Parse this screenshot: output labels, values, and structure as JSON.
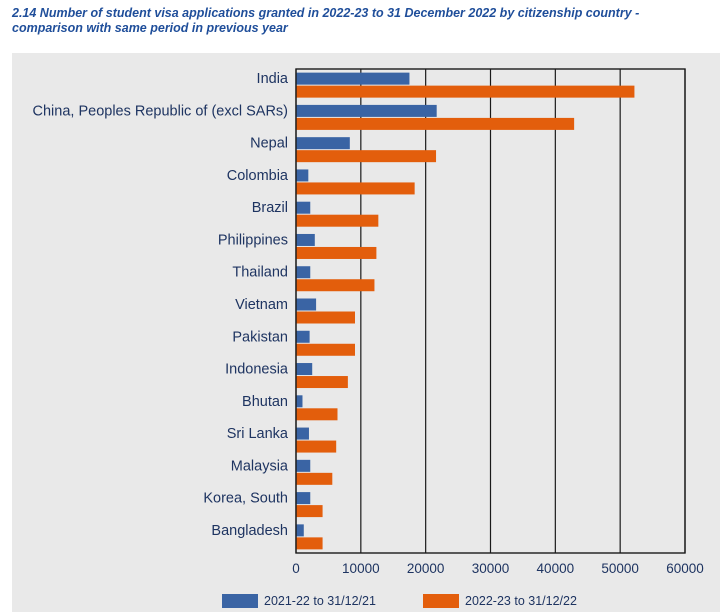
{
  "title": "2.14 Number of student visa applications granted in 2022-23 to 31 December 2022 by citizenship country - comparison with same period in previous year",
  "chart_data": {
    "type": "bar",
    "orientation": "horizontal",
    "categories": [
      "India",
      "China, Peoples Republic of (excl SARs)",
      "Nepal",
      "Colombia",
      "Brazil",
      "Philippines",
      "Thailand",
      "Vietnam",
      "Pakistan",
      "Indonesia",
      "Bhutan",
      "Sri Lanka",
      "Malaysia",
      "Korea, South",
      "Bangladesh"
    ],
    "series": [
      {
        "name": "2021-22 to 31/12/21",
        "color": "#3a64a4",
        "values": [
          17500,
          21700,
          8300,
          1900,
          2200,
          2900,
          2200,
          3100,
          2100,
          2500,
          1000,
          2000,
          2200,
          2200,
          1200
        ]
      },
      {
        "name": "2022-23 to 31/12/22",
        "color": "#e35e0c",
        "values": [
          52200,
          42900,
          21600,
          18300,
          12700,
          12400,
          12100,
          9100,
          9100,
          8000,
          6400,
          6200,
          5600,
          4100,
          4100
        ]
      }
    ],
    "xticks": [
      "0",
      "10000",
      "20000",
      "30000",
      "40000",
      "50000",
      "60000"
    ],
    "xlim": [
      0,
      60000
    ],
    "xlabel": "",
    "ylabel": "",
    "grid": true,
    "legend_position": "bottom"
  }
}
